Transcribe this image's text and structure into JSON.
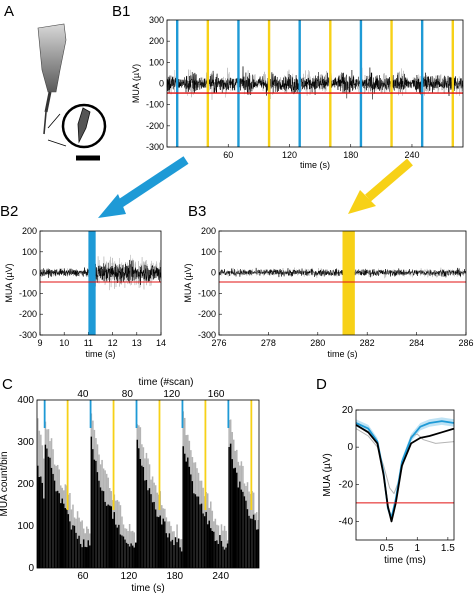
{
  "panel_labels": {
    "a": "A",
    "b1": "B1",
    "b2": "B2",
    "b3": "B3",
    "c": "C",
    "d": "D"
  },
  "colors": {
    "blue": "#1e9ad6",
    "yellow": "#f7d117",
    "red": "#e01010",
    "trace": "#000000",
    "grey": "#b4b4b4"
  },
  "chart_data": [
    {
      "id": "B1",
      "type": "line",
      "xlabel": "time (s)",
      "ylabel": "MUA (µV)",
      "xlim": [
        0,
        290
      ],
      "ylim": [
        -300,
        300
      ],
      "xticks": [
        60,
        120,
        180,
        240
      ],
      "yticks": [
        -300,
        -200,
        -100,
        0,
        100,
        200,
        300
      ],
      "threshold": -45,
      "stim_on_blue": [
        10,
        70,
        130,
        190,
        250
      ],
      "stim_off_yellow": [
        40,
        100,
        160,
        220,
        280
      ]
    },
    {
      "id": "B2",
      "type": "line",
      "xlabel": "time (s)",
      "ylabel": "MUA (µV)",
      "xlim": [
        9,
        14
      ],
      "ylim": [
        -300,
        200
      ],
      "xticks": [
        9,
        10,
        11,
        12,
        13,
        14
      ],
      "yticks": [
        -300,
        -200,
        -100,
        0,
        100,
        200
      ],
      "threshold": -45,
      "highlight_band": [
        11.0,
        11.3
      ]
    },
    {
      "id": "B3",
      "type": "line",
      "xlabel": "time (s)",
      "ylabel": "MUA (µV)",
      "xlim": [
        276,
        286
      ],
      "ylim": [
        -300,
        200
      ],
      "xticks": [
        276,
        278,
        280,
        282,
        284,
        286
      ],
      "yticks": [
        -300,
        -200,
        -100,
        0,
        100,
        200
      ],
      "threshold": -45,
      "highlight_band": [
        281.0,
        281.5
      ]
    },
    {
      "id": "C",
      "type": "bar",
      "xlabel": "time (s)",
      "ylabel": "MUA count/bin",
      "x2label": "time (#scan)",
      "xlim": [
        0,
        290
      ],
      "ylim": [
        0,
        400
      ],
      "xticks": [
        60,
        120,
        180,
        240
      ],
      "x2ticks": [
        40,
        80,
        120,
        160
      ],
      "yticks": [
        0,
        100,
        200,
        300,
        400
      ],
      "stim_on_blue": [
        10,
        70,
        130,
        190,
        250
      ],
      "stim_off_yellow": [
        40,
        100,
        160,
        220,
        280
      ],
      "block_profile": [
        {
          "t": 0,
          "black": 300,
          "grey": 360
        },
        {
          "t": 5,
          "black": 260,
          "grey": 320
        },
        {
          "t": 10,
          "black": 220,
          "grey": 280
        },
        {
          "t": 15,
          "black": 185,
          "grey": 240
        },
        {
          "t": 20,
          "black": 160,
          "grey": 215
        },
        {
          "t": 25,
          "black": 140,
          "grey": 190
        },
        {
          "t": 30,
          "black": 120,
          "grey": 170
        },
        {
          "t": 35,
          "black": 100,
          "grey": 145
        },
        {
          "t": 40,
          "black": 85,
          "grey": 125
        },
        {
          "t": 45,
          "black": 70,
          "grey": 105
        },
        {
          "t": 50,
          "black": 60,
          "grey": 90
        },
        {
          "t": 55,
          "black": 55,
          "grey": 80
        },
        {
          "t": 60,
          "black": 50,
          "grey": 75
        }
      ]
    },
    {
      "id": "D",
      "type": "line",
      "xlabel": "time (ms)",
      "ylabel": "MUA (µV)",
      "xlim": [
        0,
        1.6
      ],
      "ylim": [
        -50,
        20
      ],
      "xticks": [
        0.5,
        1,
        1.5
      ],
      "xtick_labels": [
        "0.5",
        "1",
        "1.5"
      ],
      "yticks": [
        -40,
        -20,
        0,
        20
      ],
      "threshold": -30,
      "series": [
        {
          "color": "black",
          "x": [
            0,
            0.2,
            0.35,
            0.45,
            0.52,
            0.58,
            0.65,
            0.75,
            0.9,
            1.05,
            1.2,
            1.4,
            1.6
          ],
          "y": [
            12,
            8,
            2,
            -15,
            -32,
            -40,
            -30,
            -10,
            2,
            5,
            6,
            8,
            10
          ]
        },
        {
          "color": "blue",
          "x": [
            0,
            0.2,
            0.35,
            0.45,
            0.52,
            0.58,
            0.65,
            0.75,
            0.9,
            1.05,
            1.2,
            1.4,
            1.6
          ],
          "y": [
            13,
            10,
            3,
            -14,
            -33,
            -38,
            -28,
            -8,
            5,
            11,
            13,
            14,
            13
          ]
        },
        {
          "color": "grey",
          "x": [
            0,
            0.2,
            0.35,
            0.45,
            0.55,
            0.62,
            0.7,
            0.8,
            0.9,
            1.0,
            1.1,
            1.3,
            1.6
          ],
          "y": [
            10,
            6,
            0,
            -10,
            -22,
            -25,
            -18,
            -5,
            6,
            7,
            4,
            2,
            3
          ]
        }
      ]
    }
  ]
}
